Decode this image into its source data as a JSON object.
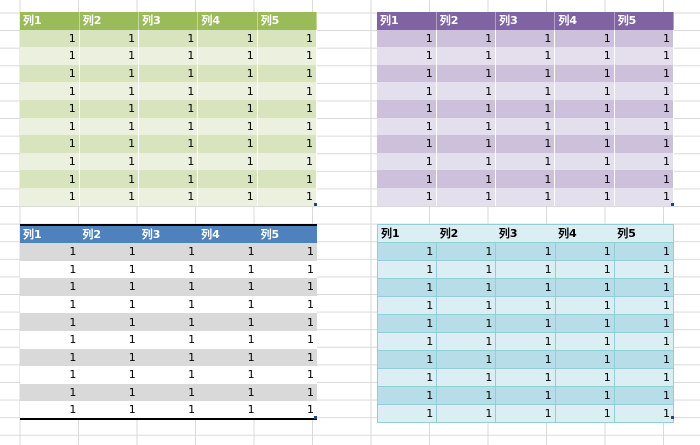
{
  "tables": [
    {
      "id": "green",
      "headers": [
        "列1",
        "列2",
        "列3",
        "列4",
        "列5"
      ],
      "rows": [
        [
          "1",
          "1",
          "1",
          "1",
          "1"
        ],
        [
          "1",
          "1",
          "1",
          "1",
          "1"
        ],
        [
          "1",
          "1",
          "1",
          "1",
          "1"
        ],
        [
          "1",
          "1",
          "1",
          "1",
          "1"
        ],
        [
          "1",
          "1",
          "1",
          "1",
          "1"
        ],
        [
          "1",
          "1",
          "1",
          "1",
          "1"
        ],
        [
          "1",
          "1",
          "1",
          "1",
          "1"
        ],
        [
          "1",
          "1",
          "1",
          "1",
          "1"
        ],
        [
          "1",
          "1",
          "1",
          "1",
          "1"
        ],
        [
          "1",
          "1",
          "1",
          "1",
          "1"
        ]
      ]
    },
    {
      "id": "purple",
      "headers": [
        "列1",
        "列2",
        "列3",
        "列4",
        "列5"
      ],
      "rows": [
        [
          "1",
          "1",
          "1",
          "1",
          "1"
        ],
        [
          "1",
          "1",
          "1",
          "1",
          "1"
        ],
        [
          "1",
          "1",
          "1",
          "1",
          "1"
        ],
        [
          "1",
          "1",
          "1",
          "1",
          "1"
        ],
        [
          "1",
          "1",
          "1",
          "1",
          "1"
        ],
        [
          "1",
          "1",
          "1",
          "1",
          "1"
        ],
        [
          "1",
          "1",
          "1",
          "1",
          "1"
        ],
        [
          "1",
          "1",
          "1",
          "1",
          "1"
        ],
        [
          "1",
          "1",
          "1",
          "1",
          "1"
        ],
        [
          "1",
          "1",
          "1",
          "1",
          "1"
        ]
      ]
    },
    {
      "id": "blue",
      "headers": [
        "列1",
        "列2",
        "列3",
        "列4",
        "列5"
      ],
      "rows": [
        [
          "1",
          "1",
          "1",
          "1",
          "1"
        ],
        [
          "1",
          "1",
          "1",
          "1",
          "1"
        ],
        [
          "1",
          "1",
          "1",
          "1",
          "1"
        ],
        [
          "1",
          "1",
          "1",
          "1",
          "1"
        ],
        [
          "1",
          "1",
          "1",
          "1",
          "1"
        ],
        [
          "1",
          "1",
          "1",
          "1",
          "1"
        ],
        [
          "1",
          "1",
          "1",
          "1",
          "1"
        ],
        [
          "1",
          "1",
          "1",
          "1",
          "1"
        ],
        [
          "1",
          "1",
          "1",
          "1",
          "1"
        ],
        [
          "1",
          "1",
          "1",
          "1",
          "1"
        ]
      ]
    },
    {
      "id": "aqua",
      "headers": [
        "列1",
        "列2",
        "列3",
        "列4",
        "列5"
      ],
      "rows": [
        [
          "1",
          "1",
          "1",
          "1",
          "1"
        ],
        [
          "1",
          "1",
          "1",
          "1",
          "1"
        ],
        [
          "1",
          "1",
          "1",
          "1",
          "1"
        ],
        [
          "1",
          "1",
          "1",
          "1",
          "1"
        ],
        [
          "1",
          "1",
          "1",
          "1",
          "1"
        ],
        [
          "1",
          "1",
          "1",
          "1",
          "1"
        ],
        [
          "1",
          "1",
          "1",
          "1",
          "1"
        ],
        [
          "1",
          "1",
          "1",
          "1",
          "1"
        ],
        [
          "1",
          "1",
          "1",
          "1",
          "1"
        ],
        [
          "1",
          "1",
          "1",
          "1",
          "1"
        ]
      ]
    }
  ],
  "colors": {
    "green_header": "#9bbb59",
    "purple_header": "#8064a2",
    "blue_header": "#4f81bd",
    "aqua_header": "#daeef3"
  }
}
